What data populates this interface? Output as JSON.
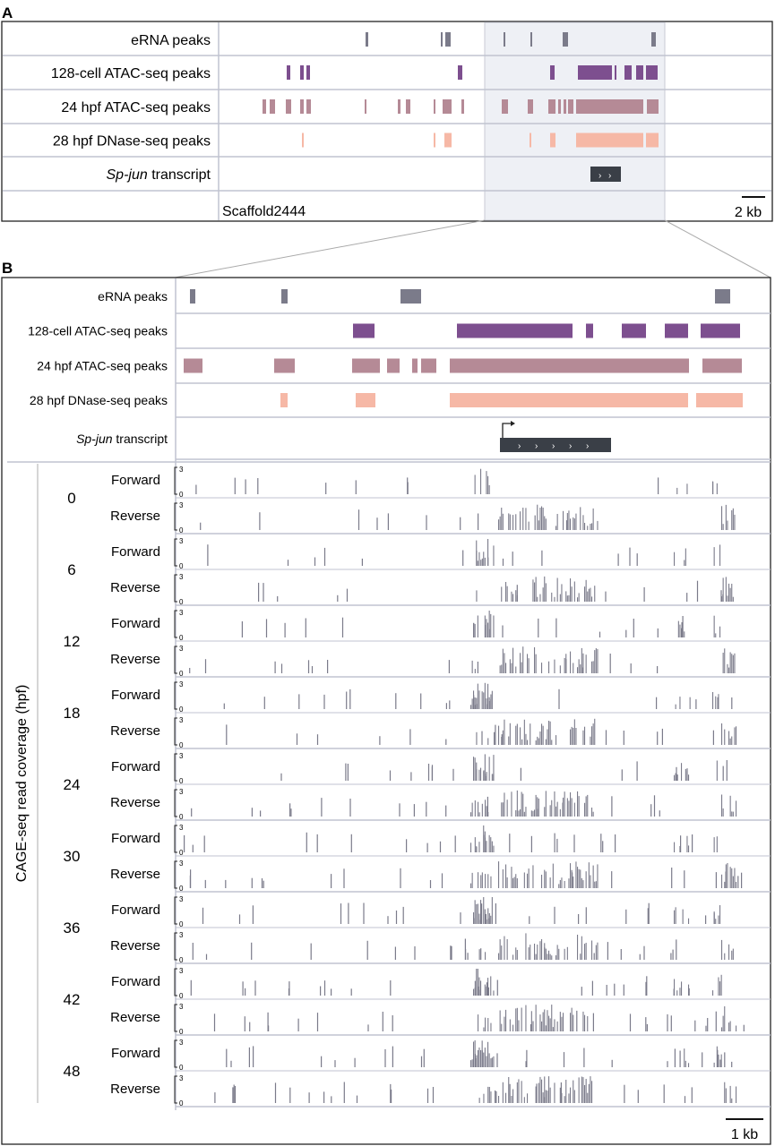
{
  "panelA": {
    "label": "A",
    "tracks": [
      {
        "label": "eRNA peaks",
        "color": "#7b7b8a",
        "peaks": [
          [
            408,
            411
          ],
          [
            492,
            494
          ],
          [
            497,
            503
          ],
          [
            562,
            564
          ],
          [
            592,
            594
          ],
          [
            628,
            634
          ],
          [
            727,
            732
          ]
        ]
      },
      {
        "label": "128-cell ATAC-seq peaks",
        "color": "#7d4f8f",
        "peaks": [
          [
            320,
            324
          ],
          [
            335,
            339
          ],
          [
            342,
            346
          ],
          [
            511,
            516
          ],
          [
            614,
            619
          ],
          [
            645,
            683
          ],
          [
            686,
            688
          ],
          [
            697,
            705
          ],
          [
            710,
            718
          ],
          [
            721,
            734
          ]
        ]
      },
      {
        "label": "24 hpf ATAC-seq peaks",
        "color": "#b58a96",
        "peaks": [
          [
            293,
            297
          ],
          [
            301,
            307
          ],
          [
            319,
            325
          ],
          [
            335,
            339
          ],
          [
            342,
            347
          ],
          [
            407,
            409
          ],
          [
            444,
            447
          ],
          [
            453,
            458
          ],
          [
            484,
            486
          ],
          [
            494,
            504
          ],
          [
            515,
            518
          ],
          [
            560,
            567
          ],
          [
            589,
            595
          ],
          [
            612,
            620
          ],
          [
            623,
            626
          ],
          [
            629,
            632
          ],
          [
            634,
            640
          ],
          [
            643,
            718
          ],
          [
            722,
            735
          ]
        ]
      },
      {
        "label": "28 hpf DNase-seq peaks",
        "color": "#f6b8a6",
        "peaks": [
          [
            337,
            339
          ],
          [
            484,
            486
          ],
          [
            496,
            504
          ],
          [
            591,
            593
          ],
          [
            614,
            620
          ],
          [
            643,
            718
          ],
          [
            721,
            735
          ]
        ]
      }
    ],
    "transcript_label_italic": "Sp-jun",
    "transcript_label_rest": " transcript",
    "scaffold": "Scaffold2444",
    "scale": "2 kb"
  },
  "panelB": {
    "label": "B",
    "tracks": [
      {
        "label": "eRNA peaks",
        "color": "#7b7b8a",
        "peaks": [
          [
            212,
            218
          ],
          [
            314,
            321
          ],
          [
            447,
            470
          ],
          [
            798,
            815
          ]
        ]
      },
      {
        "label": "128-cell ATAC-seq peaks",
        "color": "#7d4f8f",
        "peaks": [
          [
            394,
            418
          ],
          [
            510,
            639
          ],
          [
            654,
            662
          ],
          [
            694,
            721
          ],
          [
            742,
            768
          ],
          [
            782,
            826
          ]
        ]
      },
      {
        "label": "24 hpf ATAC-seq peaks",
        "color": "#b58a96",
        "peaks": [
          [
            205,
            226
          ],
          [
            306,
            329
          ],
          [
            393,
            424
          ],
          [
            432,
            446
          ],
          [
            460,
            466
          ],
          [
            470,
            487
          ],
          [
            502,
            769
          ],
          [
            784,
            828
          ]
        ]
      },
      {
        "label": "28 hpf DNase-seq peaks",
        "color": "#f6b8a6",
        "peaks": [
          [
            313,
            321
          ],
          [
            397,
            419
          ],
          [
            502,
            768
          ],
          [
            777,
            829
          ]
        ]
      }
    ],
    "transcript_label_italic": "Sp-jun",
    "transcript_label_rest": " transcript",
    "cage_axis_label": "CAGE-seq read coverage (hpf)",
    "cage_y_top": "3",
    "cage_y_bottom": "0",
    "cage_y_max": 3,
    "strand_forward": "Forward",
    "strand_reverse": "Reverse",
    "timepoints": [
      "0",
      "6",
      "12",
      "18",
      "24",
      "30",
      "36",
      "42",
      "48"
    ],
    "bar_color": "#7b7b8a",
    "scale": "1 kb"
  }
}
